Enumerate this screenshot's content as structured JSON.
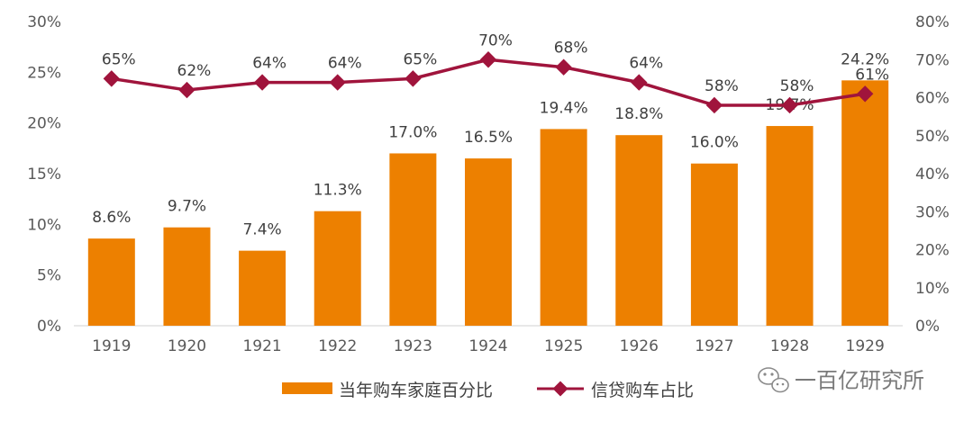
{
  "chart_data": {
    "type": "bar",
    "categories": [
      "1919",
      "1920",
      "1921",
      "1922",
      "1923",
      "1924",
      "1925",
      "1926",
      "1927",
      "1928",
      "1929"
    ],
    "series": [
      {
        "name": "当年购车家庭百分比",
        "type": "bar",
        "axis": "left",
        "color": "#ED8000",
        "values": [
          8.6,
          9.7,
          7.4,
          11.3,
          17.0,
          16.5,
          19.4,
          18.8,
          16.0,
          19.7,
          24.2
        ],
        "labels": [
          "8.6%",
          "9.7%",
          "7.4%",
          "11.3%",
          "17.0%",
          "16.5%",
          "19.4%",
          "18.8%",
          "16.0%",
          "19.7%",
          "24.2%"
        ]
      },
      {
        "name": "信贷购车占比",
        "type": "line",
        "axis": "right",
        "color": "#A0143C",
        "values": [
          65,
          62,
          64,
          64,
          65,
          70,
          68,
          64,
          58,
          58,
          61
        ],
        "labels": [
          "65%",
          "62%",
          "64%",
          "64%",
          "65%",
          "70%",
          "68%",
          "64%",
          "58%",
          "58%",
          "61%"
        ]
      }
    ],
    "y_left": {
      "range": [
        0,
        30
      ],
      "ticks": [
        0,
        5,
        10,
        15,
        20,
        25,
        30
      ],
      "tick_labels": [
        "0%",
        "5%",
        "10%",
        "15%",
        "20%",
        "25%",
        "30%"
      ]
    },
    "y_right": {
      "range": [
        0,
        80
      ],
      "ticks": [
        0,
        10,
        20,
        30,
        40,
        50,
        60,
        70,
        80
      ],
      "tick_labels": [
        "0%",
        "10%",
        "20%",
        "30%",
        "40%",
        "50%",
        "60%",
        "70%",
        "80%"
      ]
    },
    "grid": false,
    "legend_position": "bottom-center"
  },
  "watermark": {
    "text": "一百亿研究所",
    "icon": "wechat-icon"
  }
}
